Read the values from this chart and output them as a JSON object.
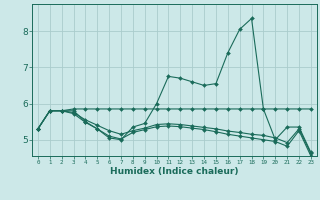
{
  "xlabel": "Humidex (Indice chaleur)",
  "bg_color": "#cce8e8",
  "grid_color": "#aacccc",
  "line_color": "#1a6b5a",
  "series": [
    [
      5.3,
      5.8,
      5.8,
      5.8,
      5.5,
      5.3,
      5.05,
      5.0,
      5.35,
      5.45,
      6.0,
      6.75,
      6.7,
      6.6,
      6.5,
      6.55,
      7.4,
      8.05,
      8.35,
      5.85,
      5.0,
      5.35,
      5.35,
      4.65
    ],
    [
      5.3,
      5.8,
      5.8,
      5.85,
      5.85,
      5.85,
      5.85,
      5.85,
      5.85,
      5.85,
      5.85,
      5.85,
      5.85,
      5.85,
      5.85,
      5.85,
      5.85,
      5.85,
      5.85,
      5.85,
      5.85,
      5.85,
      5.85,
      5.85
    ],
    [
      5.3,
      5.8,
      5.8,
      5.75,
      5.55,
      5.4,
      5.25,
      5.15,
      5.25,
      5.32,
      5.42,
      5.44,
      5.42,
      5.38,
      5.34,
      5.3,
      5.24,
      5.2,
      5.15,
      5.12,
      5.05,
      4.92,
      5.3,
      4.62
    ],
    [
      5.3,
      5.8,
      5.8,
      5.72,
      5.48,
      5.3,
      5.1,
      5.02,
      5.2,
      5.28,
      5.36,
      5.38,
      5.36,
      5.32,
      5.28,
      5.22,
      5.15,
      5.1,
      5.05,
      5.0,
      4.95,
      4.82,
      5.25,
      4.55
    ]
  ],
  "xlim_min": -0.5,
  "xlim_max": 23.5,
  "ylim_min": 4.55,
  "ylim_max": 8.75,
  "yticks": [
    5,
    6,
    7,
    8
  ],
  "xticks": [
    0,
    1,
    2,
    3,
    4,
    5,
    6,
    7,
    8,
    9,
    10,
    11,
    12,
    13,
    14,
    15,
    16,
    17,
    18,
    19,
    20,
    21,
    22,
    23
  ],
  "markersize": 2.0,
  "linewidth": 0.8
}
